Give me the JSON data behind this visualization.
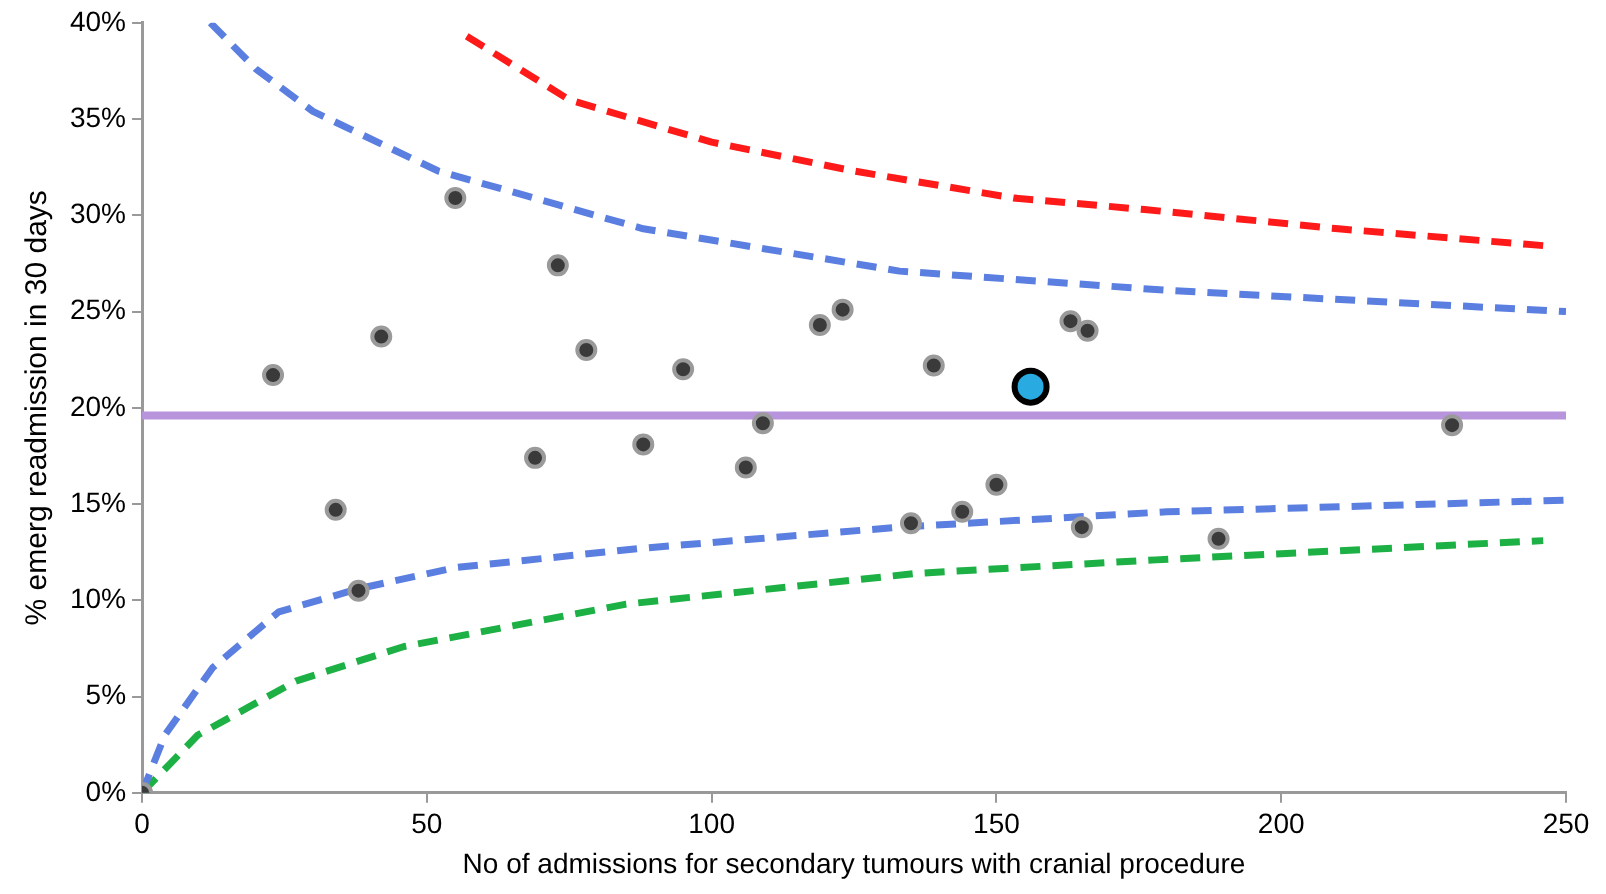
{
  "chart_data": {
    "type": "scatter",
    "xlabel": "No of admissions for secondary tumours with cranial procedure",
    "ylabel": "% emerg readmission in 30 days",
    "xlim": [
      0,
      250
    ],
    "xticks": [
      0,
      50,
      100,
      150,
      200,
      250
    ],
    "ylim": [
      0,
      40
    ],
    "yticks": [
      {
        "value": 0,
        "label": "0%"
      },
      {
        "value": 5,
        "label": "5%"
      },
      {
        "value": 10,
        "label": "10%"
      },
      {
        "value": 15,
        "label": "15%"
      },
      {
        "value": 20,
        "label": "20%"
      },
      {
        "value": 25,
        "label": "25%"
      },
      {
        "value": 30,
        "label": "30%"
      },
      {
        "value": 35,
        "label": "35%"
      },
      {
        "value": 40,
        "label": "40%"
      }
    ],
    "grid": false,
    "legend": false,
    "ref_lines": [
      {
        "axis": "y",
        "value": 19.6,
        "color": "#b894dc"
      }
    ],
    "series": [
      {
        "type": "line",
        "color": "#ff1a1a",
        "line_style": "dashed",
        "marker": "none",
        "x": [
          57,
          75,
          100,
          125,
          153,
          176,
          210,
          247
        ],
        "values": [
          39.3,
          36.0,
          33.8,
          32.3,
          30.9,
          30.3,
          29.3,
          28.4
        ]
      },
      {
        "type": "line",
        "color": "#5b7fe0",
        "line_style": "dashed",
        "marker": "none",
        "x": [
          12,
          20,
          30,
          52,
          88,
          133,
          180,
          250
        ],
        "values": [
          40,
          37.6,
          35.4,
          32.3,
          29.3,
          27.1,
          26.1,
          25.0
        ]
      },
      {
        "type": "line",
        "color": "#5b7fe0",
        "line_style": "dashed",
        "marker": "none",
        "x": [
          0,
          4,
          12.4,
          24,
          38,
          55,
          87.6,
          133,
          180,
          250
        ],
        "values": [
          0,
          3.0,
          6.5,
          9.4,
          10.6,
          11.7,
          12.7,
          13.8,
          14.6,
          15.2
        ]
      },
      {
        "type": "line",
        "color": "#1db045",
        "line_style": "dashed",
        "marker": "none",
        "x": [
          0,
          9.8,
          27,
          46,
          85,
          136,
          178,
          246
        ],
        "values": [
          0,
          3.0,
          5.8,
          7.6,
          9.8,
          11.4,
          12.1,
          13.1
        ]
      },
      {
        "color": "#3a3a3a",
        "marker": "circle",
        "x": [
          0,
          23,
          34,
          38,
          42,
          55,
          69,
          73,
          78,
          88,
          95,
          106,
          109,
          119,
          123,
          135,
          139,
          144,
          150,
          163,
          166,
          165,
          189,
          230
        ],
        "values": [
          0,
          21.7,
          14.7,
          10.5,
          23.7,
          30.9,
          17.4,
          27.4,
          23.0,
          18.1,
          22.0,
          16.9,
          19.2,
          24.3,
          25.1,
          14.0,
          22.2,
          14.6,
          16.0,
          24.5,
          24.0,
          13.8,
          13.2,
          19.1
        ]
      },
      {
        "color": "#29aae1",
        "marker": "circle",
        "x": [
          156
        ],
        "values": [
          21.1
        ]
      }
    ]
  }
}
